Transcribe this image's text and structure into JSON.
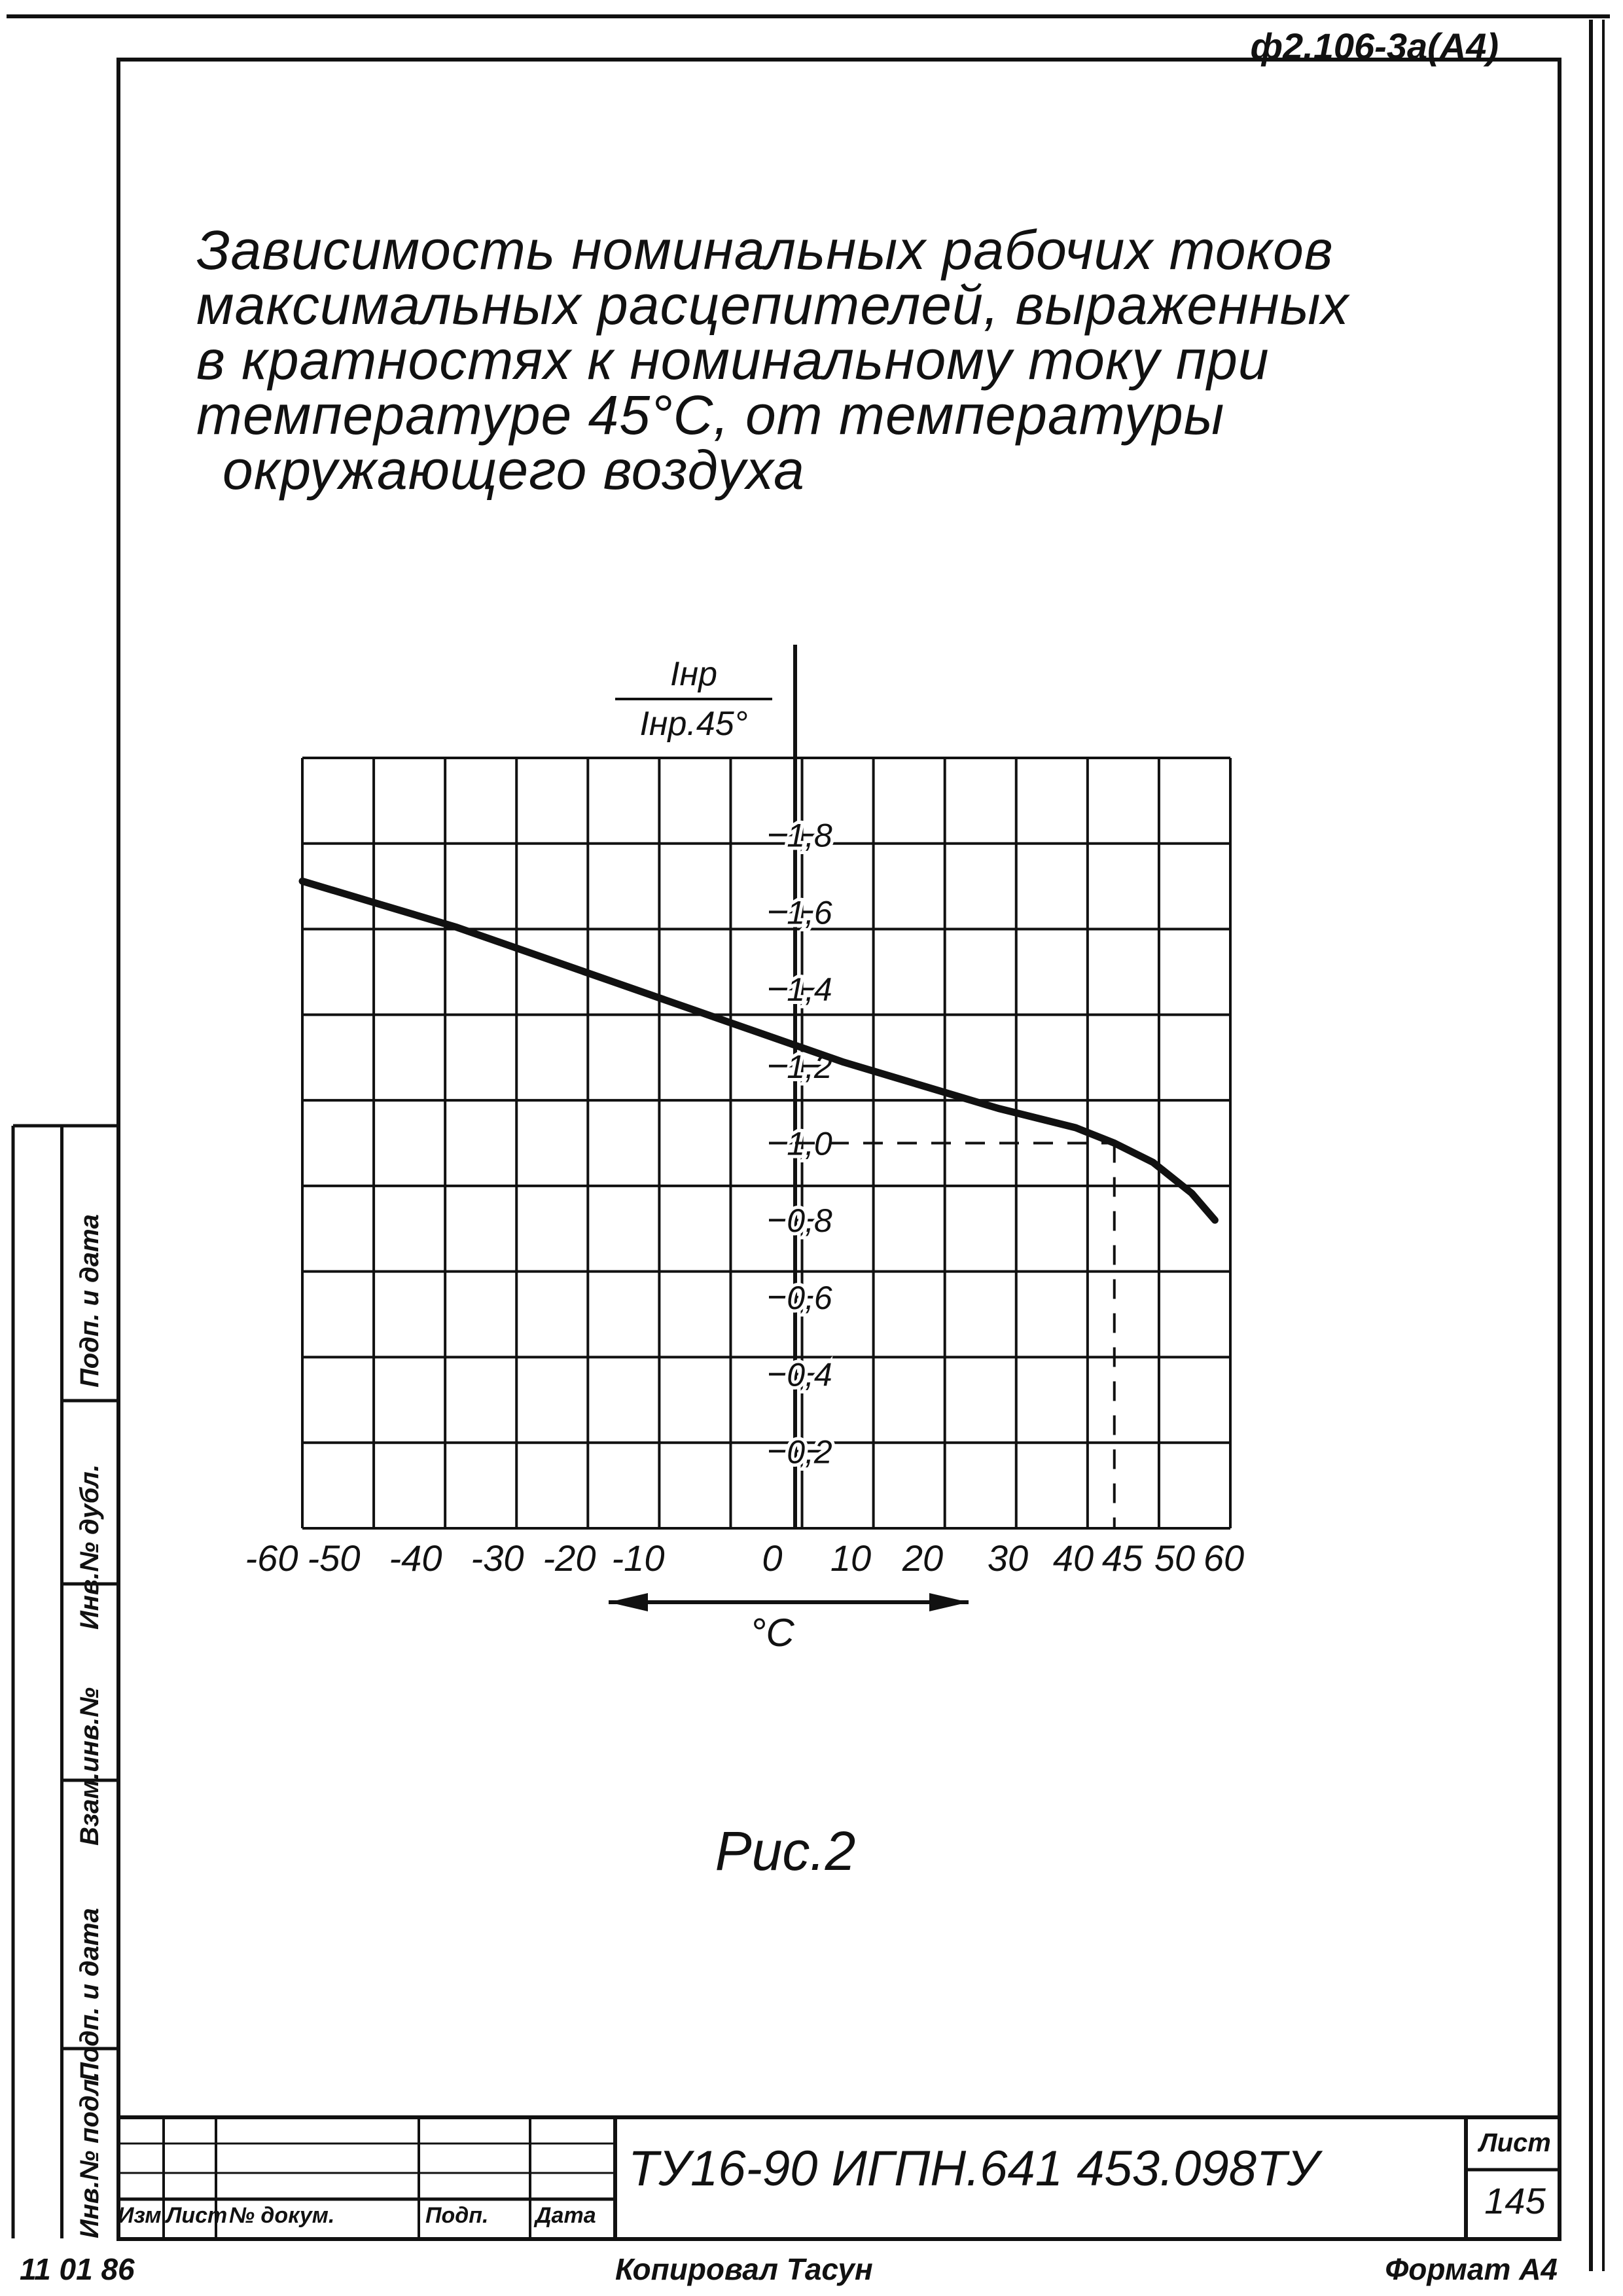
{
  "form_code": "ф2.106-3а(А4)",
  "title_lines": [
    "Зависимость номинальных рабочих токов",
    "максимальных расцепителей, выраженных",
    "в кратностях к номинальному току при",
    "температуре 45°С, от температуры",
    "окружающего воздуха"
  ],
  "chart_data": {
    "type": "line",
    "title": "",
    "ylabel_numerator": "Iнр",
    "ylabel_denominator": "Iнр.45°",
    "xlabel": "°С",
    "x_ticks": [
      "-60",
      "-50",
      "-40",
      "-30",
      "-20",
      "-10",
      "0",
      "10",
      "20",
      "30",
      "40",
      "45",
      "50",
      "60"
    ],
    "y_ticks": [
      "1,8",
      "1,6",
      "1,4",
      "1,2",
      "1,0",
      "0,8",
      "0,6",
      "0,4",
      "0,2"
    ],
    "xlim": [
      -60,
      60
    ],
    "ylim": [
      0,
      2.0
    ],
    "grid": true,
    "series": [
      {
        "x": [
          -60,
          -50,
          -40,
          -30,
          -20,
          -10,
          0,
          10,
          20,
          30,
          40,
          45,
          50,
          55,
          58
        ],
        "y": [
          1.68,
          1.62,
          1.56,
          1.49,
          1.42,
          1.35,
          1.28,
          1.21,
          1.15,
          1.09,
          1.04,
          1.0,
          0.95,
          0.87,
          0.8
        ]
      }
    ],
    "reference": {
      "x": 45,
      "y": 1.0
    }
  },
  "figure_caption": "Рис.2",
  "side_labels": [
    "Подп. и дата",
    "Инв.№ дубл.",
    "Взам.инв.№",
    "Подп. и дата",
    "Инв.№ подл."
  ],
  "title_block": {
    "doc_number": "ТУ16-90  ИГПН.641 453.098ТУ",
    "sheet_label": "Лист",
    "sheet_number": "145",
    "col_headers": [
      "Изм",
      "Лист",
      "№ докум.",
      "Подп.",
      "Дата"
    ]
  },
  "footer": {
    "left_mark": "11 01 86",
    "copied_by": "Копировал Тасун",
    "format": "Формат А4"
  }
}
